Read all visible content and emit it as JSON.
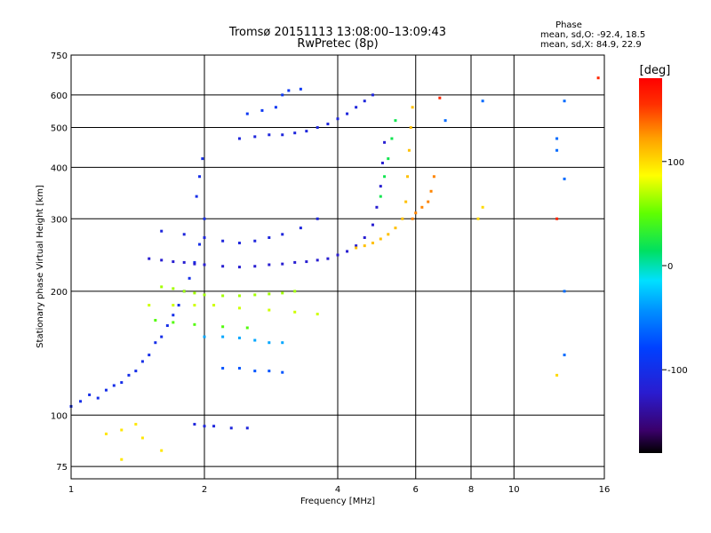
{
  "chart_data": {
    "type": "scatter",
    "title": "Tromsø 20151113 13:08:00–13:09:43",
    "subtitle": "RwPretec (8p)",
    "xlabel": "Frequency [MHz]",
    "ylabel": "Stationary phase Virtual Height [km]",
    "x_scale": "log",
    "y_scale": "log",
    "xlim": [
      1,
      16
    ],
    "ylim": [
      70,
      750
    ],
    "x_ticks": [
      1,
      2,
      4,
      6,
      8,
      10,
      16
    ],
    "x_tick_labels": [
      "1",
      "2",
      "4",
      "6",
      "8",
      "10",
      "16"
    ],
    "y_ticks": [
      75,
      100,
      200,
      300,
      400,
      500,
      600,
      750
    ],
    "y_tick_labels": [
      "75",
      "100",
      "200",
      "300",
      "400",
      "500",
      "600",
      "750"
    ],
    "grid": true,
    "annotation": {
      "title": "Phase",
      "line1": "mean, sd,O: -92.4, 18.5",
      "line2": "mean, sd,X:  84.9, 22.9"
    },
    "colorbar": {
      "label": "[deg]",
      "range": [
        -180,
        180
      ],
      "ticks": [
        100,
        0,
        -100
      ],
      "tick_labels": [
        "100",
        "0",
        "-100"
      ]
    },
    "traces": [
      {
        "phase": -100,
        "points": [
          [
            1.0,
            105
          ],
          [
            1.05,
            108
          ],
          [
            1.1,
            112
          ],
          [
            1.15,
            110
          ],
          [
            1.2,
            115
          ],
          [
            1.25,
            118
          ],
          [
            1.3,
            120
          ],
          [
            1.35,
            125
          ],
          [
            1.4,
            128
          ],
          [
            1.45,
            135
          ],
          [
            1.5,
            140
          ],
          [
            1.55,
            150
          ],
          [
            1.6,
            155
          ],
          [
            1.65,
            165
          ],
          [
            1.7,
            175
          ],
          [
            1.75,
            185
          ],
          [
            1.8,
            200
          ],
          [
            1.85,
            215
          ],
          [
            1.9,
            235
          ],
          [
            1.95,
            260
          ],
          [
            2.0,
            300
          ],
          [
            1.92,
            340
          ],
          [
            1.95,
            380
          ],
          [
            1.98,
            420
          ]
        ]
      },
      {
        "phase": -120,
        "points": [
          [
            1.5,
            240
          ],
          [
            1.6,
            238
          ],
          [
            1.7,
            236
          ],
          [
            1.8,
            235
          ],
          [
            1.9,
            233
          ],
          [
            2.0,
            232
          ],
          [
            2.2,
            230
          ],
          [
            2.4,
            229
          ],
          [
            2.6,
            230
          ],
          [
            2.8,
            232
          ],
          [
            3.0,
            233
          ],
          [
            3.2,
            235
          ],
          [
            3.4,
            236
          ],
          [
            3.6,
            238
          ],
          [
            3.8,
            240
          ],
          [
            4.0,
            245
          ],
          [
            4.2,
            250
          ],
          [
            4.4,
            258
          ],
          [
            4.6,
            270
          ],
          [
            4.8,
            290
          ],
          [
            4.9,
            320
          ],
          [
            5.0,
            360
          ],
          [
            5.05,
            410
          ],
          [
            5.1,
            460
          ]
        ]
      },
      {
        "phase": -110,
        "points": [
          [
            1.6,
            280
          ],
          [
            1.8,
            275
          ],
          [
            2.0,
            270
          ],
          [
            2.2,
            265
          ],
          [
            2.4,
            262
          ],
          [
            2.6,
            265
          ],
          [
            2.8,
            270
          ],
          [
            3.0,
            275
          ],
          [
            3.3,
            285
          ],
          [
            3.6,
            300
          ]
        ]
      },
      {
        "phase": -110,
        "points": [
          [
            2.4,
            470
          ],
          [
            2.6,
            475
          ],
          [
            2.8,
            480
          ],
          [
            3.0,
            480
          ],
          [
            3.2,
            485
          ],
          [
            3.4,
            490
          ],
          [
            3.6,
            500
          ],
          [
            3.8,
            510
          ],
          [
            4.0,
            525
          ],
          [
            4.2,
            540
          ],
          [
            4.4,
            560
          ],
          [
            4.6,
            580
          ],
          [
            4.8,
            600
          ]
        ]
      },
      {
        "phase": -90,
        "points": [
          [
            2.5,
            540
          ],
          [
            2.7,
            550
          ],
          [
            2.9,
            560
          ],
          [
            3.0,
            600
          ],
          [
            3.1,
            615
          ],
          [
            3.3,
            620
          ]
        ]
      },
      {
        "phase": 110,
        "points": [
          [
            4.4,
            255
          ],
          [
            4.6,
            258
          ],
          [
            4.8,
            262
          ],
          [
            5.0,
            268
          ],
          [
            5.2,
            275
          ],
          [
            5.4,
            285
          ],
          [
            5.6,
            300
          ],
          [
            5.7,
            330
          ],
          [
            5.75,
            380
          ],
          [
            5.8,
            440
          ],
          [
            5.85,
            500
          ],
          [
            5.9,
            560
          ]
        ]
      },
      {
        "phase": 130,
        "points": [
          [
            5.9,
            300
          ],
          [
            6.0,
            310
          ],
          [
            6.2,
            320
          ],
          [
            6.4,
            330
          ],
          [
            6.5,
            350
          ],
          [
            6.6,
            380
          ]
        ]
      },
      {
        "phase": 20,
        "points": [
          [
            5.0,
            340
          ],
          [
            5.1,
            380
          ],
          [
            5.2,
            420
          ],
          [
            5.3,
            470
          ],
          [
            5.4,
            520
          ]
        ]
      },
      {
        "phase": 65,
        "points": [
          [
            1.6,
            205
          ],
          [
            1.7,
            203
          ],
          [
            1.8,
            200
          ],
          [
            1.9,
            198
          ],
          [
            2.0,
            196
          ],
          [
            2.2,
            195
          ],
          [
            2.4,
            195
          ],
          [
            2.6,
            196
          ],
          [
            2.8,
            197
          ],
          [
            3.0,
            198
          ],
          [
            3.2,
            200
          ]
        ]
      },
      {
        "phase": 75,
        "points": [
          [
            1.5,
            185
          ],
          [
            1.7,
            185
          ],
          [
            1.9,
            185
          ],
          [
            2.1,
            185
          ],
          [
            2.4,
            182
          ],
          [
            2.8,
            180
          ],
          [
            3.2,
            178
          ],
          [
            3.6,
            176
          ]
        ]
      },
      {
        "phase": 45,
        "points": [
          [
            1.55,
            170
          ],
          [
            1.7,
            168
          ],
          [
            1.9,
            166
          ],
          [
            2.2,
            164
          ],
          [
            2.5,
            163
          ]
        ]
      },
      {
        "phase": -35,
        "points": [
          [
            2.0,
            155
          ],
          [
            2.2,
            155
          ],
          [
            2.4,
            154
          ],
          [
            2.6,
            152
          ],
          [
            2.8,
            150
          ],
          [
            3.0,
            150
          ]
        ]
      },
      {
        "phase": -70,
        "points": [
          [
            2.2,
            130
          ],
          [
            2.4,
            130
          ],
          [
            2.6,
            128
          ],
          [
            2.8,
            128
          ],
          [
            3.0,
            127
          ]
        ]
      },
      {
        "phase": -110,
        "points": [
          [
            1.9,
            95
          ],
          [
            2.0,
            94
          ],
          [
            2.1,
            94
          ],
          [
            2.3,
            93
          ],
          [
            2.5,
            93
          ]
        ]
      },
      {
        "phase": 95,
        "points": [
          [
            1.2,
            90
          ],
          [
            1.3,
            92
          ],
          [
            1.4,
            95
          ],
          [
            1.45,
            88
          ],
          [
            1.6,
            82
          ],
          [
            1.3,
            78
          ]
        ]
      },
      {
        "phase": -60,
        "points": [
          [
            7.0,
            520
          ],
          [
            8.5,
            580
          ],
          [
            13,
            580
          ],
          [
            13,
            200
          ],
          [
            12.5,
            470
          ],
          [
            12.5,
            440
          ],
          [
            13,
            140
          ],
          [
            13,
            375
          ]
        ]
      },
      {
        "phase": 160,
        "points": [
          [
            12.5,
            300
          ],
          [
            15.5,
            660
          ],
          [
            6.8,
            590
          ]
        ]
      },
      {
        "phase": 100,
        "points": [
          [
            8.5,
            320
          ],
          [
            8.3,
            300
          ],
          [
            12.5,
            125
          ]
        ]
      }
    ]
  }
}
